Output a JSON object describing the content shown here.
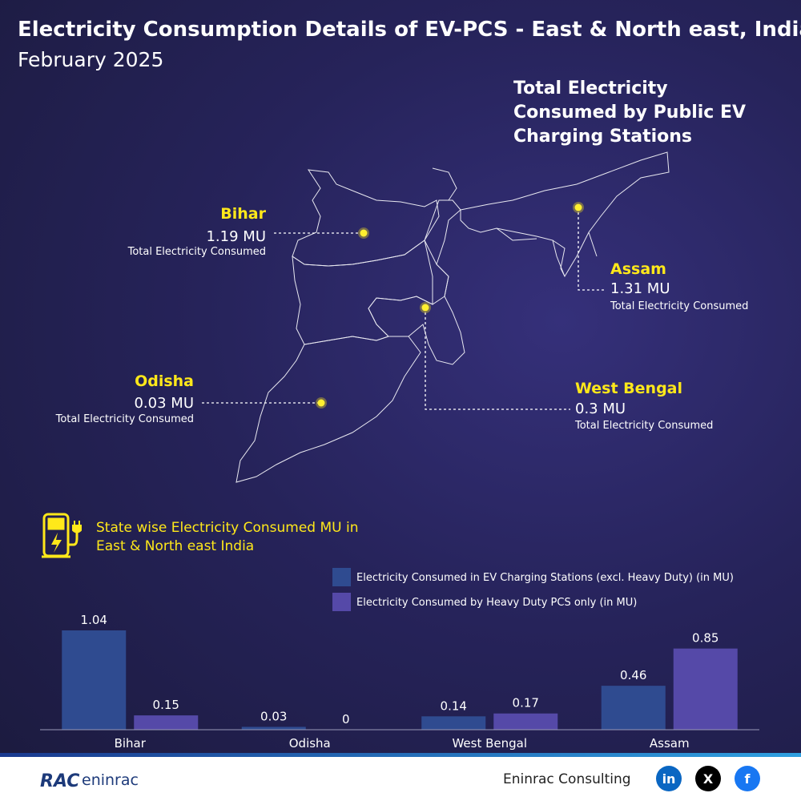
{
  "header": {
    "title": "Electricity Consumption Details of EV-PCS - East & North east, India",
    "subtitle": "February 2025"
  },
  "map": {
    "title": "Total Electricity Consumed by Public EV Charging Stations",
    "states": [
      {
        "name": "Bihar",
        "value": "1.19 MU",
        "caption": "Total Electricity Consumed"
      },
      {
        "name": "Assam",
        "value": "1.31 MU",
        "caption": "Total Electricity Consumed"
      },
      {
        "name": "Odisha",
        "value": "0.03 MU",
        "caption": "Total Electricity Consumed"
      },
      {
        "name": "West Bengal",
        "value": "0.3 MU",
        "caption": "Total Electricity Consumed"
      }
    ]
  },
  "chart_data": {
    "type": "bar",
    "title": "State wise Electricity Consumed MU in East & North east India",
    "categories": [
      "Bihar",
      "Odisha",
      "West Bengal",
      "Assam"
    ],
    "series": [
      {
        "name": "Electricity Consumed in EV Charging Stations (excl. Heavy Duty) (in MU)",
        "color": "#2f4b90",
        "values": [
          1.04,
          0.03,
          0.14,
          0.46
        ]
      },
      {
        "name": "Electricity Consumed by Heavy Duty PCS only (in MU)",
        "color": "#5549a8",
        "values": [
          0.15,
          0,
          0.17,
          0.85
        ]
      }
    ]
  },
  "footer": {
    "logo_mark": "RAC",
    "logo_text": "eninrac",
    "brand": "Eninrac Consulting",
    "social": [
      "in",
      "X",
      "f"
    ]
  }
}
